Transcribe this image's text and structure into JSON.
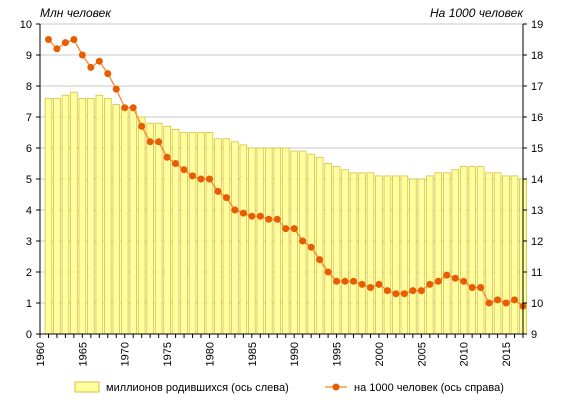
{
  "chart_data": {
    "type": "bar+line",
    "left_axis_title": "Млн человек",
    "right_axis_title": "На 1000 человек",
    "x_ticks": [
      "1960",
      "1965",
      "1970",
      "1975",
      "1980",
      "1985",
      "1990",
      "1995",
      "2000",
      "2005",
      "2010",
      "2015"
    ],
    "y_left_ticks": [
      "0",
      "1",
      "2",
      "3",
      "4",
      "5",
      "6",
      "7",
      "8",
      "9",
      "10"
    ],
    "y_right_ticks": [
      "9",
      "10",
      "11",
      "12",
      "13",
      "14",
      "15",
      "16",
      "17",
      "18",
      "19"
    ],
    "y_left_range": [
      0,
      10
    ],
    "y_right_range": [
      9,
      19
    ],
    "x_range": [
      1960,
      2017
    ],
    "grid": true,
    "legend_position": "bottom",
    "colors": {
      "bar_fill": "#ffff9e",
      "bar_stroke": "#d9c13a",
      "line": "#ff7f27",
      "marker": "#e85d00"
    },
    "years": [
      1961,
      1962,
      1963,
      1964,
      1965,
      1966,
      1967,
      1968,
      1969,
      1970,
      1971,
      1972,
      1973,
      1974,
      1975,
      1976,
      1977,
      1978,
      1979,
      1980,
      1981,
      1982,
      1983,
      1984,
      1985,
      1986,
      1987,
      1988,
      1989,
      1990,
      1991,
      1992,
      1993,
      1994,
      1995,
      1996,
      1997,
      1998,
      1999,
      2000,
      2001,
      2002,
      2003,
      2004,
      2005,
      2006,
      2007,
      2008,
      2009,
      2010,
      2011,
      2012,
      2013,
      2014,
      2015,
      2016,
      2017
    ],
    "series": [
      {
        "name": "миллионов родившихся (ось слева)",
        "axis": "left",
        "type": "bar",
        "values": [
          7.6,
          7.6,
          7.7,
          7.8,
          7.6,
          7.6,
          7.7,
          7.6,
          7.4,
          7.3,
          7.2,
          7.0,
          6.8,
          6.8,
          6.7,
          6.6,
          6.5,
          6.5,
          6.5,
          6.5,
          6.3,
          6.3,
          6.2,
          6.1,
          6.0,
          6.0,
          6.0,
          6.0,
          6.0,
          5.9,
          5.9,
          5.8,
          5.7,
          5.5,
          5.4,
          5.3,
          5.2,
          5.2,
          5.2,
          5.1,
          5.1,
          5.1,
          5.1,
          5.0,
          5.0,
          5.1,
          5.2,
          5.2,
          5.3,
          5.4,
          5.4,
          5.4,
          5.2,
          5.2,
          5.1,
          5.1,
          5.0
        ]
      },
      {
        "name": "на 1000 человек (ось справа)",
        "axis": "right",
        "type": "line",
        "values": [
          18.5,
          18.2,
          18.4,
          18.5,
          18.0,
          17.6,
          17.8,
          17.4,
          16.9,
          16.3,
          16.3,
          15.7,
          15.2,
          15.2,
          14.7,
          14.5,
          14.3,
          14.1,
          14.0,
          14.0,
          13.6,
          13.4,
          13.0,
          12.9,
          12.8,
          12.8,
          12.7,
          12.7,
          12.4,
          12.4,
          12.0,
          11.8,
          11.4,
          11.0,
          10.7,
          10.7,
          10.7,
          10.6,
          10.5,
          10.6,
          10.4,
          10.3,
          10.3,
          10.4,
          10.4,
          10.6,
          10.7,
          10.9,
          10.8,
          10.7,
          10.5,
          10.5,
          10.0,
          10.1,
          10.0,
          10.1,
          9.9
        ]
      }
    ]
  }
}
